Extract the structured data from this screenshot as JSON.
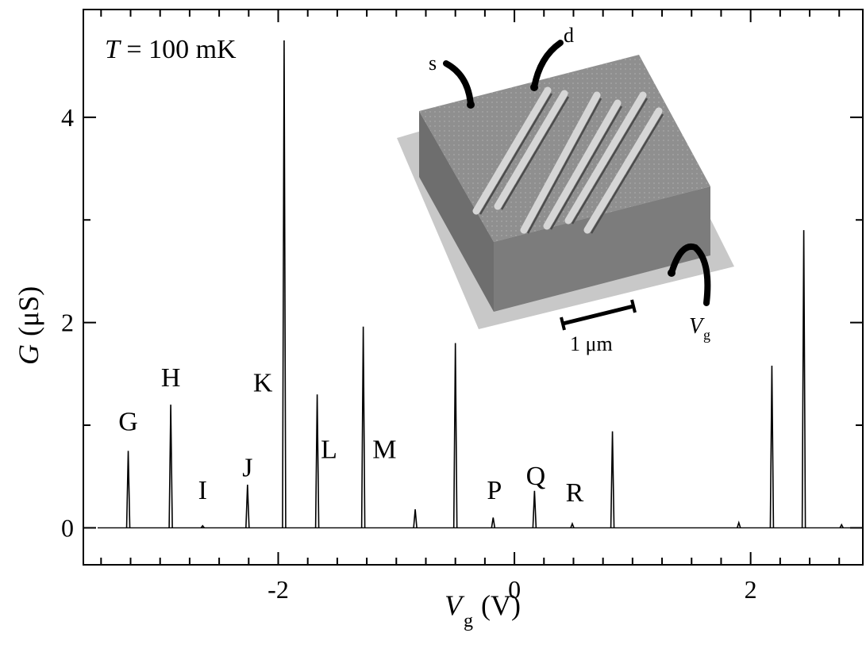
{
  "chart_data": {
    "type": "line",
    "xlabel": {
      "main": "V",
      "sub": "g",
      "unit": "(V)"
    },
    "ylabel": {
      "main": "G",
      "unit": "(μS)"
    },
    "xlim": [
      -3.65,
      2.95
    ],
    "ylim": [
      -0.36,
      5.05
    ],
    "x_ticks": [
      -2,
      0,
      2
    ],
    "x_tick_labels": [
      "-2",
      "0",
      "2"
    ],
    "x_minor_step": 0.25,
    "y_ticks": [
      0,
      2,
      4
    ],
    "y_tick_labels": [
      "0",
      "2",
      "4"
    ],
    "y_minor_step": 1,
    "annotation": {
      "italic": "T",
      "rest": " = 100 mK"
    },
    "peaks": [
      {
        "x": -3.27,
        "height": 0.75
      },
      {
        "x": -2.91,
        "height": 1.2
      },
      {
        "x": -2.64,
        "height": 0.02
      },
      {
        "x": -2.26,
        "height": 0.42
      },
      {
        "x": -1.95,
        "height": 4.75
      },
      {
        "x": -1.67,
        "height": 1.3
      },
      {
        "x": -1.28,
        "height": 1.96
      },
      {
        "x": -0.84,
        "height": 0.18
      },
      {
        "x": -0.5,
        "height": 1.8
      },
      {
        "x": -0.18,
        "height": 0.1
      },
      {
        "x": 0.17,
        "height": 0.36
      },
      {
        "x": 0.49,
        "height": 0.04
      },
      {
        "x": 0.83,
        "height": 0.94
      },
      {
        "x": 1.9,
        "height": 0.05
      },
      {
        "x": 2.18,
        "height": 1.58
      },
      {
        "x": 2.45,
        "height": 2.9
      },
      {
        "x": 2.77,
        "height": 0.03
      }
    ],
    "peak_labels": [
      {
        "text": "G",
        "x": -3.27,
        "y": 0.95
      },
      {
        "text": "H",
        "x": -2.91,
        "y": 1.38
      },
      {
        "text": "I",
        "x": -2.64,
        "y": 0.28
      },
      {
        "text": "J",
        "x": -2.26,
        "y": 0.5
      },
      {
        "text": "K",
        "x": -2.13,
        "y": 1.33
      },
      {
        "text": "L",
        "x": -1.57,
        "y": 0.68
      },
      {
        "text": "M",
        "x": -1.1,
        "y": 0.68
      },
      {
        "text": "P",
        "x": -0.17,
        "y": 0.28
      },
      {
        "text": "Q",
        "x": 0.18,
        "y": 0.42
      },
      {
        "text": "R",
        "x": 0.51,
        "y": 0.26
      }
    ]
  },
  "inset": {
    "labels": {
      "s": "s",
      "d": "d",
      "scale": "1 μm",
      "gate_main": "V",
      "gate_sub": "g"
    }
  }
}
